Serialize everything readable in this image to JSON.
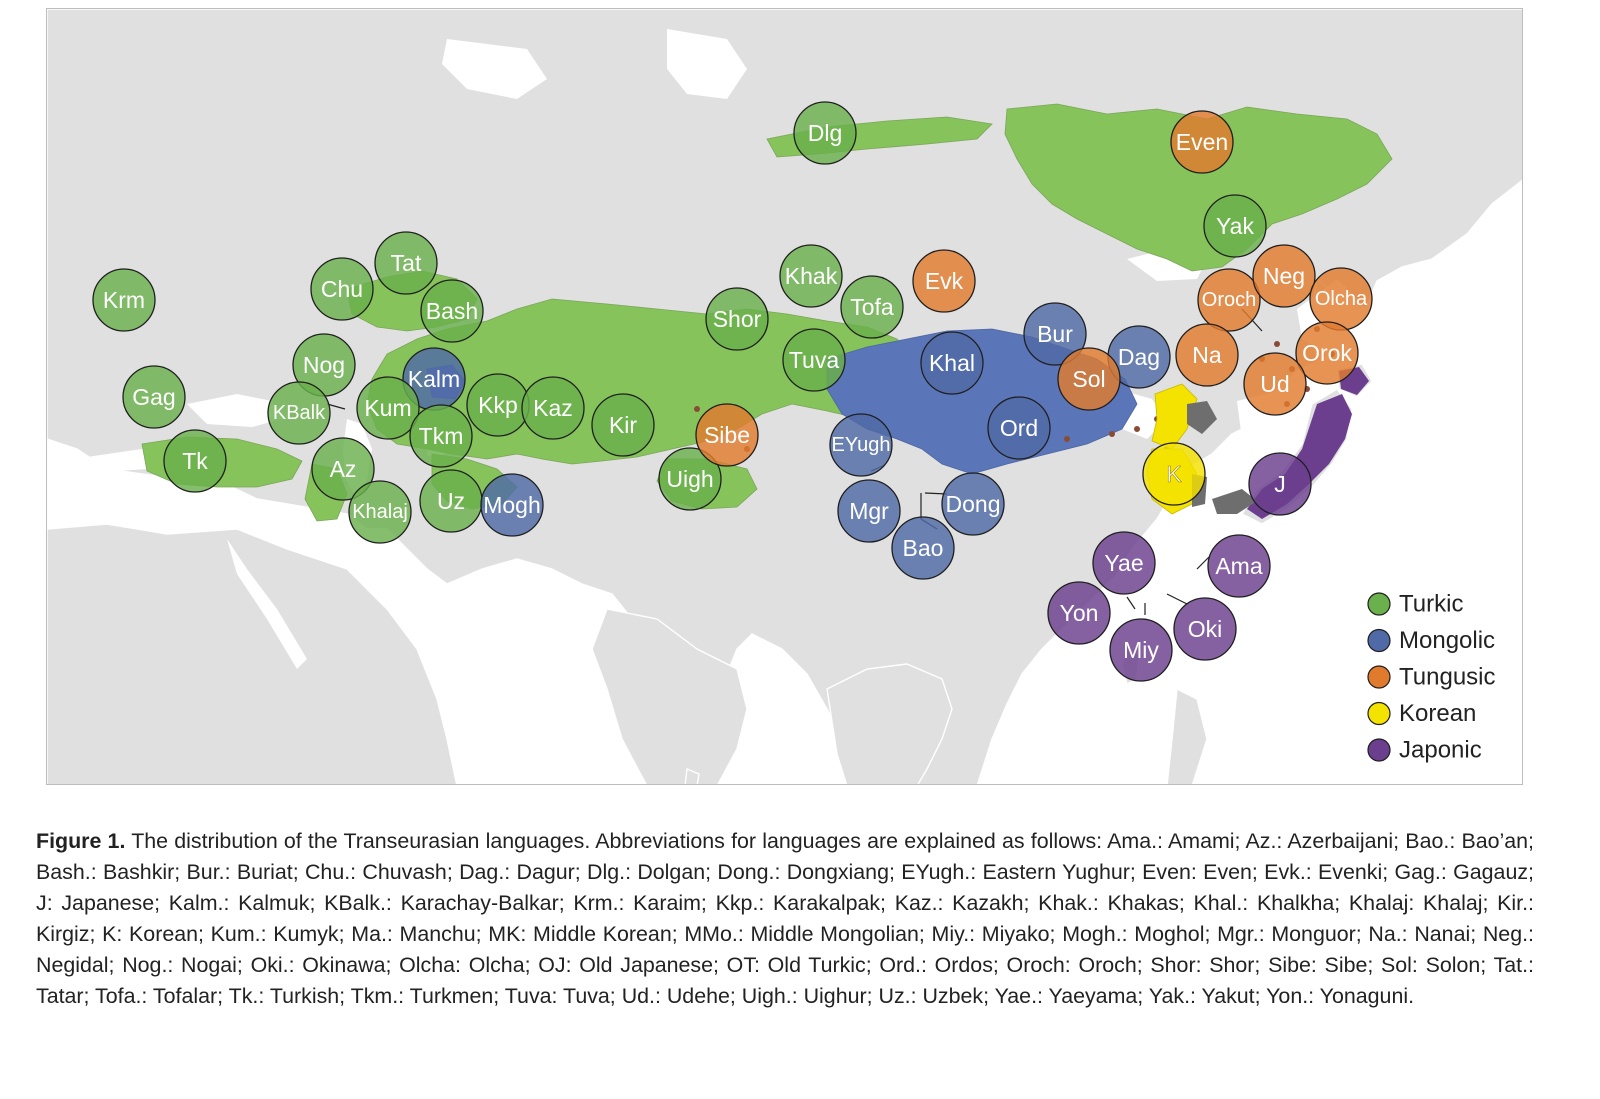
{
  "legend": [
    {
      "label": "Turkic",
      "color": "#6ab04c"
    },
    {
      "label": "Mongolic",
      "color": "#4f6aa6"
    },
    {
      "label": "Tungusic",
      "color": "#e07b2e"
    },
    {
      "label": "Korean",
      "color": "#f4e200"
    },
    {
      "label": "Japonic",
      "color": "#6b3e8e"
    }
  ],
  "colors": {
    "land": "#e0e0e0",
    "sea": "#ffffff",
    "turkic_area": "#86c35a",
    "mongolic_area": "#5a76b8",
    "tungusic_area": "#8a4b36",
    "korean_area": "#f4e200",
    "japonic_area": "#6b3e8e",
    "dark_grey_area": "#6e6e6e"
  },
  "languages": [
    {
      "label": "Dlg",
      "family": "Turkic"
    },
    {
      "label": "Even",
      "family": "Tungusic"
    },
    {
      "label": "Yak",
      "family": "Turkic"
    },
    {
      "label": "Krm",
      "family": "Turkic"
    },
    {
      "label": "Tat",
      "family": "Turkic"
    },
    {
      "label": "Chu",
      "family": "Turkic"
    },
    {
      "label": "Bash",
      "family": "Turkic"
    },
    {
      "label": "Nog",
      "family": "Turkic"
    },
    {
      "label": "Kalm",
      "family": "Mongolic"
    },
    {
      "label": "Gag",
      "family": "Turkic"
    },
    {
      "label": "KBalk",
      "family": "Turkic"
    },
    {
      "label": "Kum",
      "family": "Turkic"
    },
    {
      "label": "Kkp",
      "family": "Turkic"
    },
    {
      "label": "Kaz",
      "family": "Turkic"
    },
    {
      "label": "Tkm",
      "family": "Turkic"
    },
    {
      "label": "Tk",
      "family": "Turkic"
    },
    {
      "label": "Az",
      "family": "Turkic"
    },
    {
      "label": "Khalaj",
      "family": "Turkic"
    },
    {
      "label": "Uz",
      "family": "Turkic"
    },
    {
      "label": "Mogh",
      "family": "Mongolic"
    },
    {
      "label": "Kir",
      "family": "Turkic"
    },
    {
      "label": "Uigh",
      "family": "Turkic"
    },
    {
      "label": "Sibe",
      "family": "Tungusic"
    },
    {
      "label": "Shor",
      "family": "Turkic"
    },
    {
      "label": "Khak",
      "family": "Turkic"
    },
    {
      "label": "Tofa",
      "family": "Turkic"
    },
    {
      "label": "Tuva",
      "family": "Turkic"
    },
    {
      "label": "Evk",
      "family": "Tungusic"
    },
    {
      "label": "Khal",
      "family": "Mongolic"
    },
    {
      "label": "Bur",
      "family": "Mongolic"
    },
    {
      "label": "Dag",
      "family": "Mongolic"
    },
    {
      "label": "Sol",
      "family": "Tungusic"
    },
    {
      "label": "EYugh",
      "family": "Mongolic"
    },
    {
      "label": "Ord",
      "family": "Mongolic"
    },
    {
      "label": "Mgr",
      "family": "Mongolic"
    },
    {
      "label": "Dong",
      "family": "Mongolic"
    },
    {
      "label": "Bao",
      "family": "Mongolic"
    },
    {
      "label": "Oroch",
      "family": "Tungusic"
    },
    {
      "label": "Neg",
      "family": "Tungusic"
    },
    {
      "label": "Olcha",
      "family": "Tungusic"
    },
    {
      "label": "Na",
      "family": "Tungusic"
    },
    {
      "label": "Orok",
      "family": "Tungusic"
    },
    {
      "label": "Ud",
      "family": "Tungusic"
    },
    {
      "label": "K",
      "family": "Korean"
    },
    {
      "label": "J",
      "family": "Japonic"
    },
    {
      "label": "Yae",
      "family": "Japonic"
    },
    {
      "label": "Ama",
      "family": "Japonic"
    },
    {
      "label": "Yon",
      "family": "Japonic"
    },
    {
      "label": "Oki",
      "family": "Japonic"
    },
    {
      "label": "Miy",
      "family": "Japonic"
    }
  ],
  "caption": {
    "label": "Figure 1.",
    "text": "The distribution of the Transeurasian languages. Abbreviations for languages are explained as follows: Ama.: Amami; Az.: Azerbaijani; Bao.: Bao’an; Bash.: Bashkir; Bur.: Buriat; Chu.: Chuvash; Dag.: Dagur; Dlg.: Dolgan; Dong.: Dongxiang; EYugh.: Eastern Yughur; Even: Even; Evk.: Evenki; Gag.: Gagauz; J: Japanese; Kalm.: Kalmuk; KBalk.: Karachay-Balkar; Krm.: Karaim; Kkp.: Karakalpak; Kaz.: Kazakh; Khak.: Khakas; Khal.: Khalkha; Khalaj: Khalaj; Kir.: Kirgiz; K: Korean; Kum.: Kumyk; Ma.: Manchu; MK: Middle Korean; MMo.: Middle Mongolian; Miy.: Miyako; Mogh.: Moghol; Mgr.: Monguor; Na.: Nanai; Neg.: Negidal; Nog.: Nogai; Oki.: Okinawa; Olcha: Olcha; OJ: Old Japanese; OT: Old Turkic; Ord.: Ordos; Oroch: Oroch; Shor: Shor; Sibe: Sibe; Sol: Solon; Tat.: Tatar; Tofa.: Tofalar; Tk.: Turkish; Tkm.: Turkmen; Tuva: Tuva; Ud.: Udehe; Uigh.: Uighur; Uz.: Uzbek; Yae.: Yaeyama; Yak.: Yakut; Yon.: Yonaguni."
  }
}
